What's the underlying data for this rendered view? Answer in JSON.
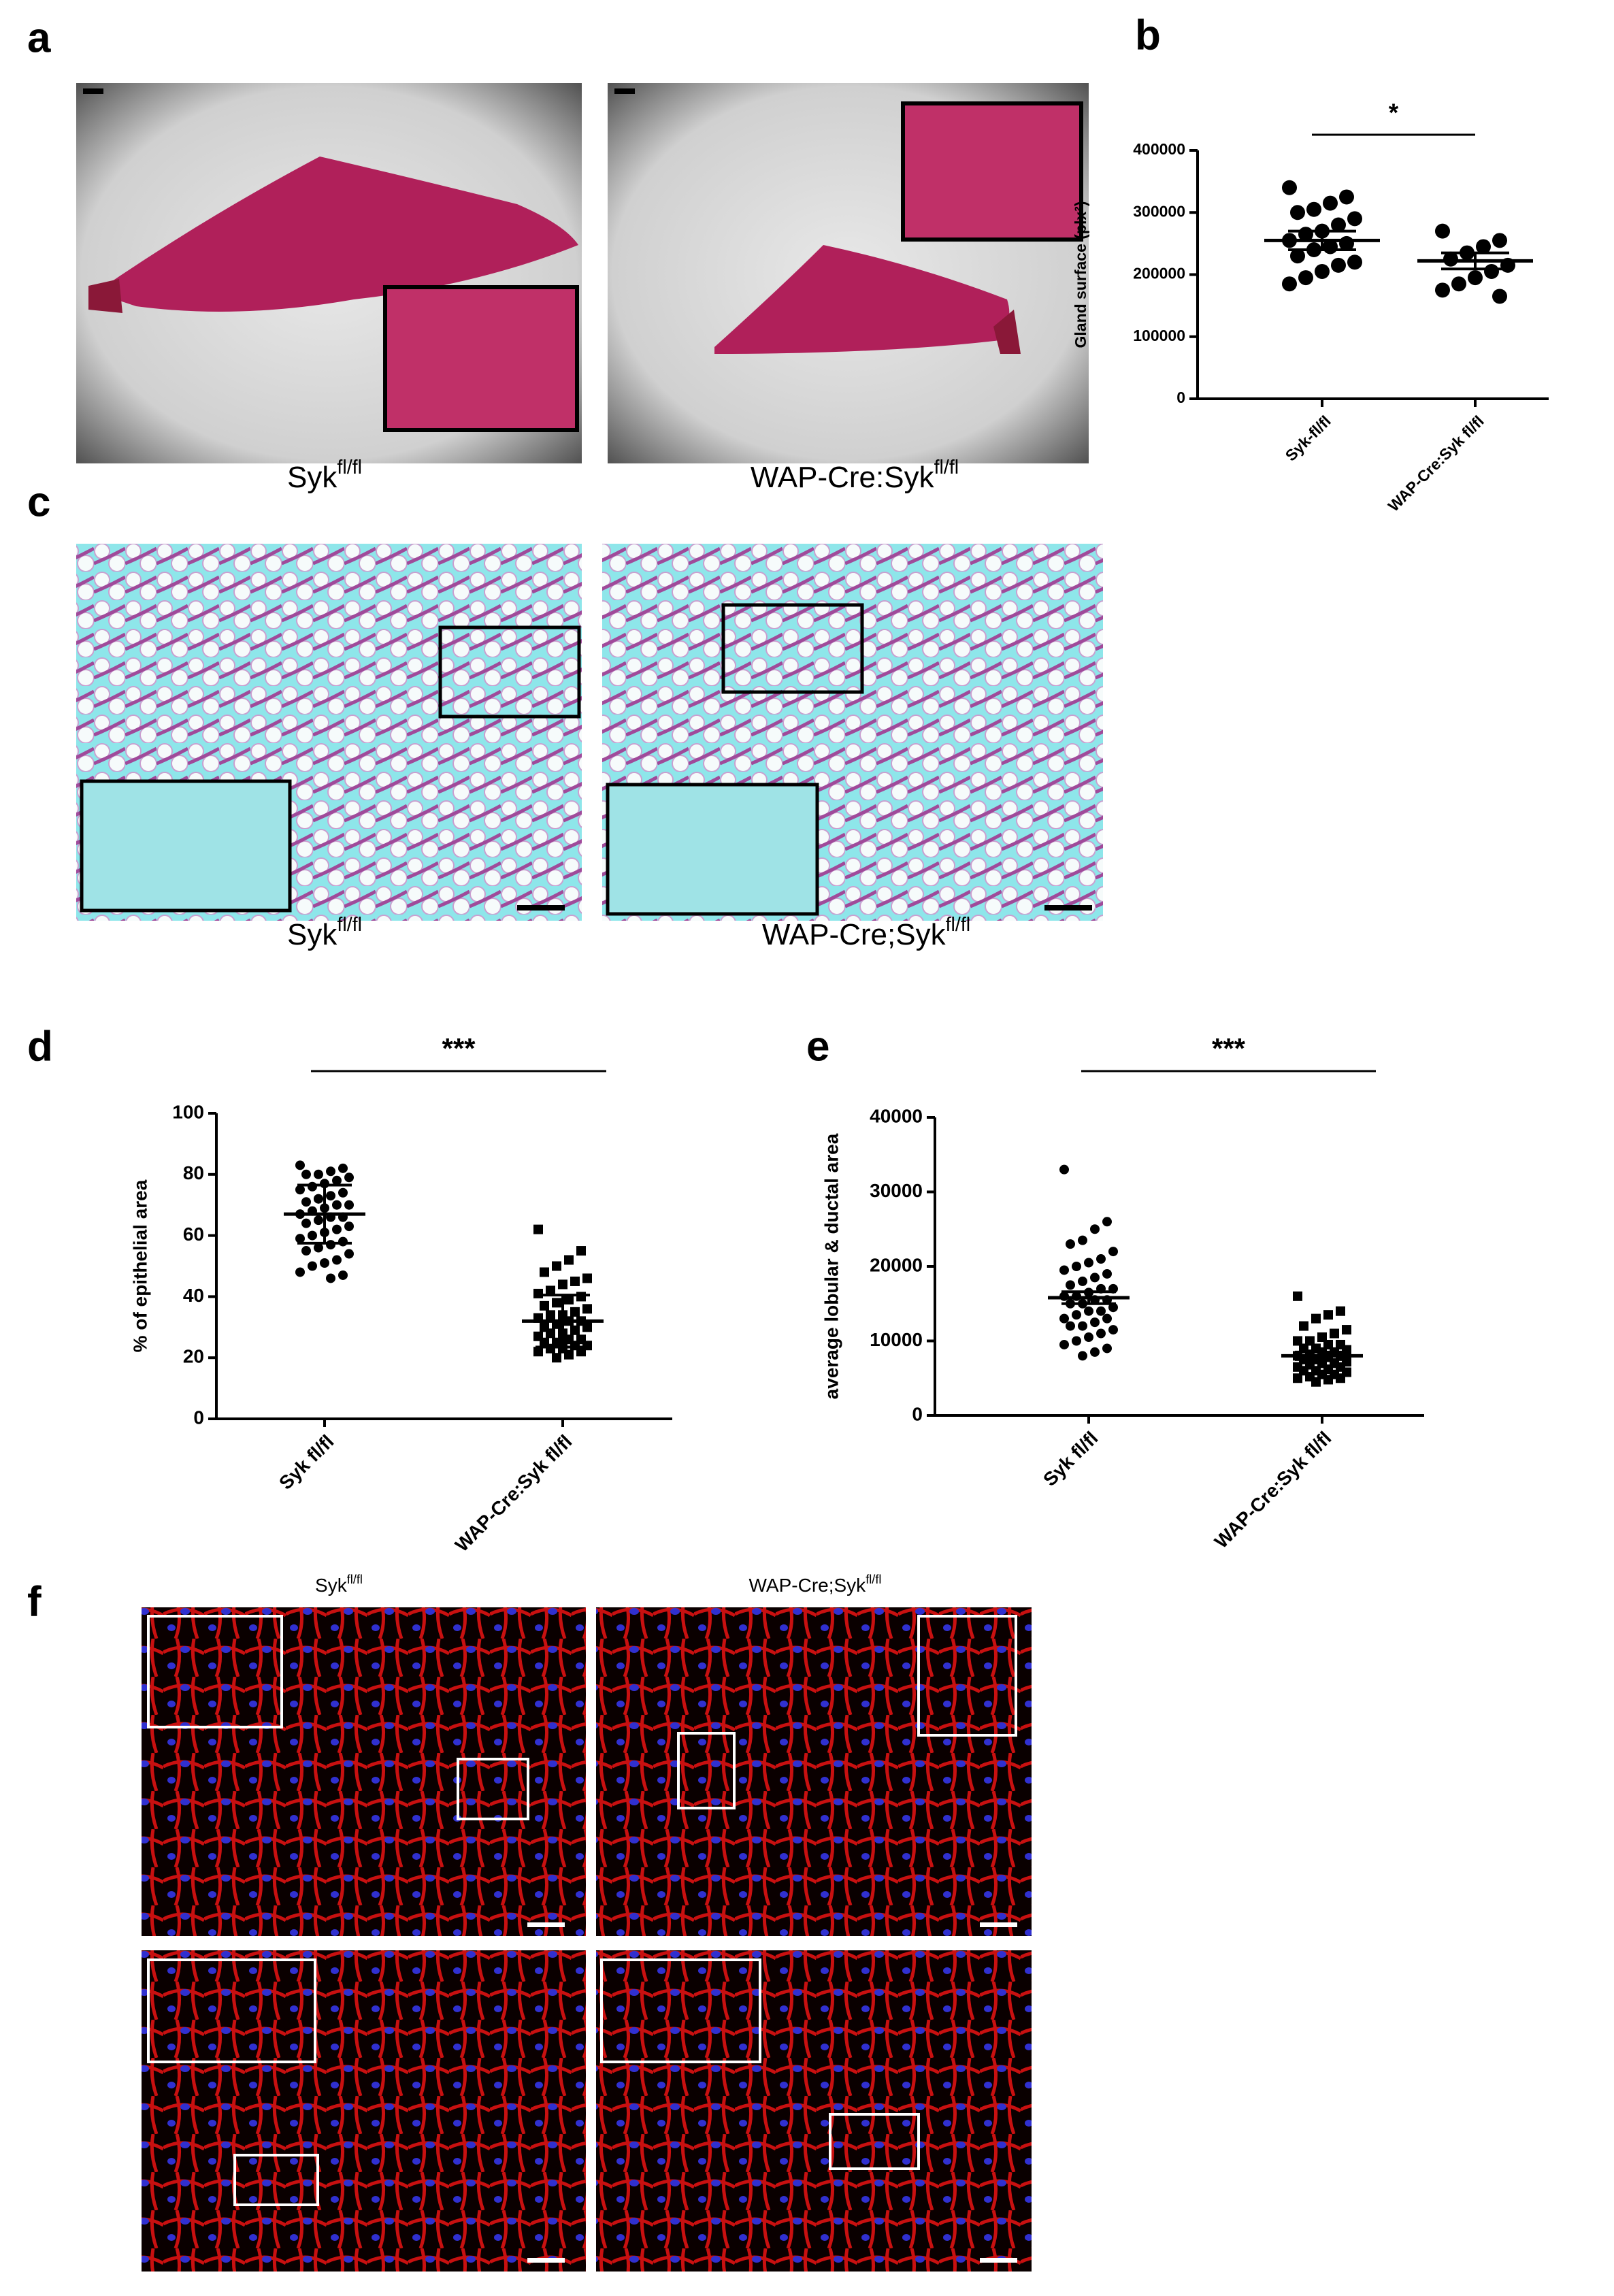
{
  "figure": {
    "panel_labels": [
      "a",
      "b",
      "c",
      "d",
      "e",
      "f"
    ],
    "a_captions": [
      {
        "base": "Syk",
        "sup": "fl/fl"
      },
      {
        "base": "WAP-Cre:Syk",
        "sup": "fl/fl"
      }
    ],
    "c_captions": [
      {
        "base": "Syk",
        "sup": "fl/fl"
      },
      {
        "base": "WAP-Cre;Syk",
        "sup": "fl/fl"
      }
    ],
    "f_captions": [
      {
        "base": "Syk",
        "sup": "fl/fl"
      },
      {
        "base": "WAP-Cre;Syk",
        "sup": "fl/fl"
      }
    ]
  },
  "chart_data": [
    {
      "type": "dotplot",
      "ylabel": "Gland surface (plx²)",
      "categories": [
        "Syk-fl/fl",
        "WAP-Cre:Syk fl/fl"
      ],
      "ylim": [
        0,
        400000
      ],
      "yticks": [
        0,
        100000,
        200000,
        300000,
        400000
      ],
      "annotation": "*",
      "color": "#000000",
      "groups": [
        {
          "marker": "circle",
          "mean": 255000,
          "error": 15000,
          "values": [
            340000,
            325000,
            315000,
            305000,
            300000,
            290000,
            280000,
            270000,
            265000,
            255000,
            250000,
            245000,
            240000,
            230000,
            220000,
            215000,
            205000,
            195000,
            185000
          ]
        },
        {
          "marker": "circle",
          "mean": 222000,
          "error": 13000,
          "values": [
            270000,
            255000,
            245000,
            235000,
            225000,
            215000,
            205000,
            195000,
            185000,
            175000,
            165000
          ]
        }
      ]
    },
    {
      "type": "dotplot",
      "ylabel": "% of epithelial area",
      "categories": [
        "Syk fl/fl",
        "WAP-Cre:Syk fl/fl"
      ],
      "ylim": [
        0,
        100
      ],
      "yticks": [
        0,
        20,
        40,
        60,
        80,
        100
      ],
      "annotation": "***",
      "color": "#000000",
      "groups": [
        {
          "marker": "circle",
          "mean": 67,
          "error": 9.5,
          "values": [
            83,
            82,
            81,
            80,
            80,
            79,
            78,
            77,
            76,
            75,
            74,
            73,
            72,
            71,
            70,
            70,
            69,
            68,
            67,
            66,
            66,
            65,
            64,
            63,
            62,
            61,
            60,
            59,
            58,
            57,
            56,
            55,
            54,
            52,
            51,
            50,
            48,
            47,
            46,
            72
          ]
        },
        {
          "marker": "square",
          "mean": 32,
          "error": 8.5,
          "values": [
            62,
            55,
            52,
            50,
            48,
            46,
            45,
            44,
            42,
            41,
            40,
            39,
            38,
            37,
            36,
            35,
            34,
            34,
            33,
            32,
            32,
            31,
            30,
            30,
            29,
            28,
            28,
            27,
            26,
            26,
            25,
            25,
            24,
            24,
            23,
            23,
            22,
            22,
            21,
            20
          ]
        }
      ]
    },
    {
      "type": "dotplot",
      "ylabel": "average lobular & ductal area",
      "categories": [
        "Syk fl/fl",
        "WAP-Cre:Syk fl/fl"
      ],
      "ylim": [
        0,
        40000
      ],
      "yticks": [
        0,
        10000,
        20000,
        30000,
        40000
      ],
      "annotation": "***",
      "color": "#000000",
      "groups": [
        {
          "marker": "circle",
          "mean": 15800,
          "error": 800,
          "values": [
            33000,
            26000,
            25000,
            23500,
            23000,
            22000,
            21000,
            20500,
            20000,
            19500,
            19000,
            18500,
            18000,
            17500,
            17000,
            17000,
            16500,
            16000,
            16000,
            15500,
            15500,
            15000,
            15000,
            14500,
            14000,
            14000,
            13500,
            13000,
            13000,
            12500,
            12000,
            12000,
            11500,
            11000,
            10500,
            10000,
            9500,
            9000,
            8500,
            8000
          ]
        },
        {
          "marker": "square",
          "mean": 8000,
          "error": 500,
          "values": [
            16000,
            14000,
            13500,
            13000,
            12000,
            11500,
            11000,
            10500,
            10000,
            10000,
            9500,
            9500,
            9000,
            9000,
            8800,
            8500,
            8500,
            8200,
            8000,
            8000,
            7800,
            7500,
            7500,
            7200,
            7000,
            7000,
            6800,
            6500,
            6500,
            6200,
            6000,
            6000,
            5800,
            5500,
            5500,
            5200,
            5000,
            5000,
            4800,
            4500
          ]
        }
      ]
    }
  ]
}
